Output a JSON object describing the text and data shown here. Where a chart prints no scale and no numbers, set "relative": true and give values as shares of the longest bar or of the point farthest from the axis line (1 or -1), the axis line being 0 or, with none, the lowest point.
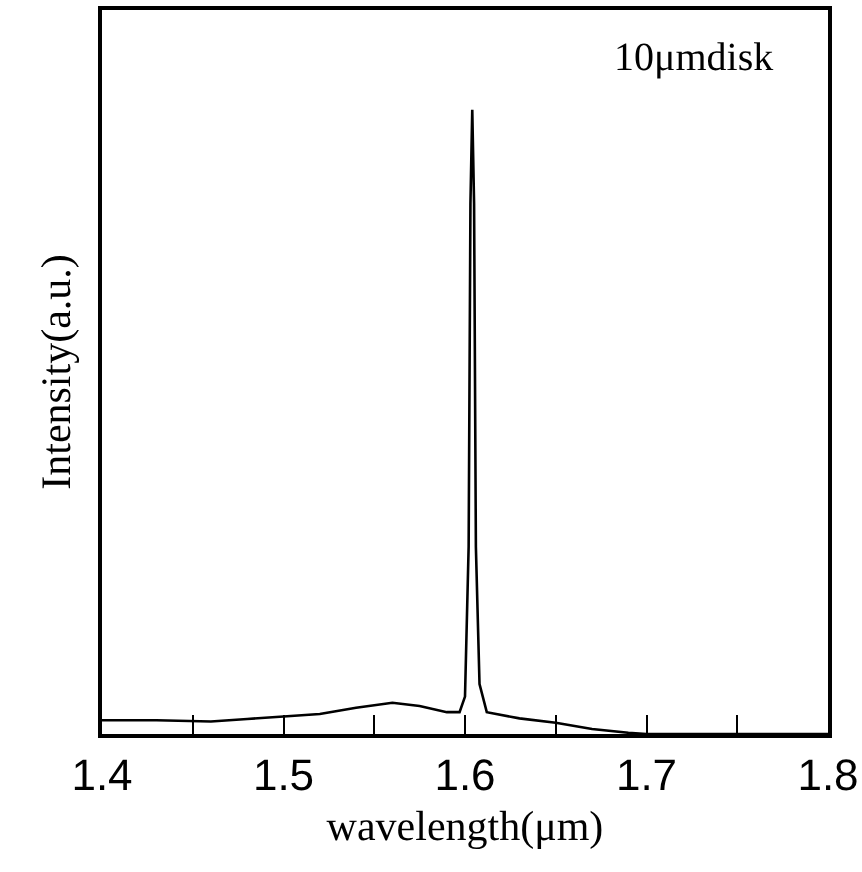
{
  "chart_data": {
    "type": "line",
    "relative": true,
    "xlabel": "wavelength(μm)",
    "ylabel": "Intensity(a.u.)",
    "annotations": [
      "10μmdisk"
    ],
    "xlim": [
      1.4,
      1.8
    ],
    "xticks": [
      1.4,
      {
        "value": 1.45,
        "label": null
      },
      1.5,
      {
        "value": 1.55,
        "label": null
      },
      1.6,
      {
        "value": 1.65,
        "label": null
      },
      1.7,
      {
        "value": 1.75,
        "label": null
      },
      1.8
    ],
    "grid": false,
    "marker": "none",
    "line_style": "solid",
    "series": [
      {
        "color": "#000000",
        "x": [
          1.4,
          1.43,
          1.46,
          1.48,
          1.5,
          1.52,
          1.54,
          1.56,
          1.575,
          1.59,
          1.597,
          1.6,
          1.602,
          1.603,
          1.604,
          1.605,
          1.606,
          1.608,
          1.612,
          1.63,
          1.65,
          1.67,
          1.69,
          1.7,
          1.8
        ],
        "values": [
          0.022,
          0.022,
          0.02,
          0.024,
          0.028,
          0.032,
          0.042,
          0.05,
          0.045,
          0.035,
          0.035,
          0.06,
          0.3,
          0.85,
          1,
          0.85,
          0.3,
          0.08,
          0.035,
          0.025,
          0.018,
          0.008,
          0.002,
          0,
          0
        ]
      }
    ]
  }
}
